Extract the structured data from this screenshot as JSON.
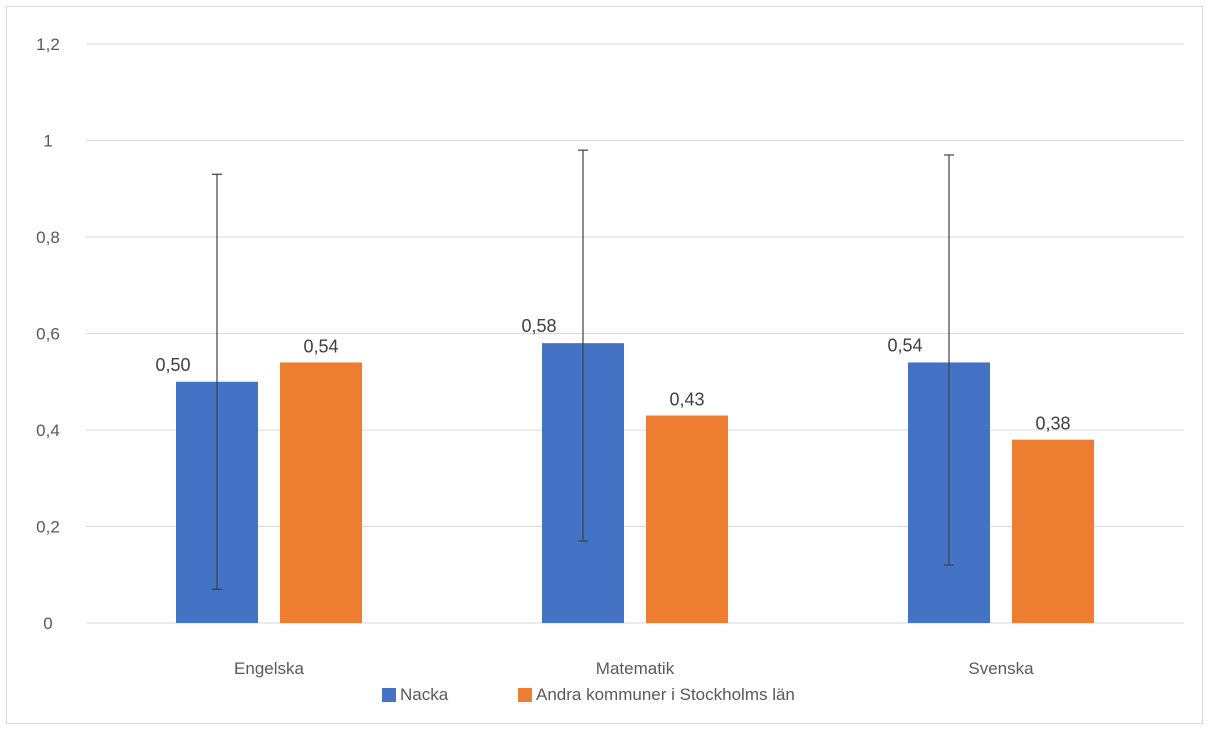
{
  "chart_data": {
    "type": "bar",
    "categories": [
      "Engelska",
      "Matematik",
      "Svenska"
    ],
    "series": [
      {
        "name": "Nacka",
        "color": "#4472C4",
        "values": [
          0.5,
          0.58,
          0.54
        ],
        "labels": [
          "0,50",
          "0,58",
          "0,54"
        ],
        "error_low": [
          0.07,
          0.17,
          0.12
        ],
        "error_high": [
          0.93,
          0.98,
          0.97
        ]
      },
      {
        "name": "Andra kommuner i Stockholms län",
        "color": "#ED7D31",
        "values": [
          0.54,
          0.43,
          0.38
        ],
        "labels": [
          "0,54",
          "0,43",
          "0,38"
        ]
      }
    ],
    "ylim": [
      0,
      1.2
    ],
    "yticks": [
      {
        "value": 0,
        "label": "0"
      },
      {
        "value": 0.2,
        "label": "0,2"
      },
      {
        "value": 0.4,
        "label": "0,4"
      },
      {
        "value": 0.6,
        "label": "0,6"
      },
      {
        "value": 0.8,
        "label": "0,8"
      },
      {
        "value": 1.0,
        "label": "1"
      },
      {
        "value": 1.2,
        "label": "1,2"
      }
    ],
    "grid": true,
    "legend_position": "bottom",
    "title": "",
    "xlabel": "",
    "ylabel": ""
  }
}
